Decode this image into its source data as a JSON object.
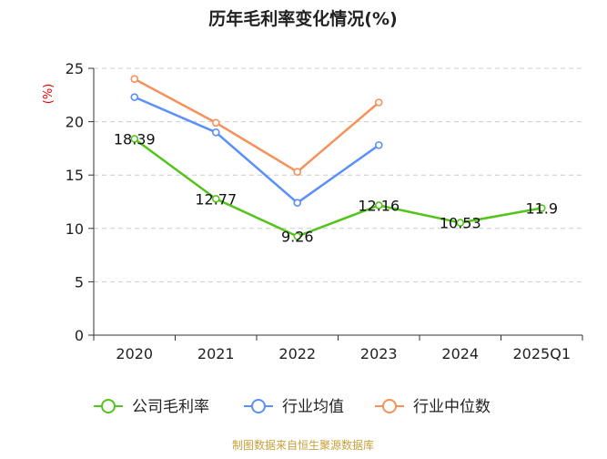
{
  "chart_data": {
    "type": "line",
    "title": "历年毛利率变化情况(%)",
    "ylabel": "(%)",
    "xlabel": "",
    "ylim": [
      0,
      25
    ],
    "yticks": [
      0,
      5,
      10,
      15,
      20,
      25
    ],
    "grid": true,
    "categories": [
      "2020",
      "2021",
      "2022",
      "2023",
      "2024",
      "2025Q1"
    ],
    "series": [
      {
        "name": "公司毛利率",
        "color": "#52c41a",
        "values": [
          18.39,
          12.77,
          9.26,
          12.16,
          10.53,
          11.9
        ],
        "labels": [
          "18.39",
          "12.77",
          "9.26",
          "12.16",
          "10.53",
          "11.9"
        ]
      },
      {
        "name": "行业均值",
        "color": "#5b8ff9",
        "values": [
          22.3,
          19.0,
          12.4,
          17.8,
          null,
          null
        ]
      },
      {
        "name": "行业中位数",
        "color": "#f6915a",
        "values": [
          24.0,
          19.9,
          15.3,
          21.8,
          null,
          null
        ]
      }
    ],
    "legend_position": "bottom",
    "source": "制图数据来自恒生聚源数据库",
    "colors": {
      "title": "#222222",
      "ylabel": "#e60000",
      "axis": "#333333",
      "grid": "#cccccc",
      "tick_text": "#222222",
      "source": "#c8a03c"
    }
  }
}
